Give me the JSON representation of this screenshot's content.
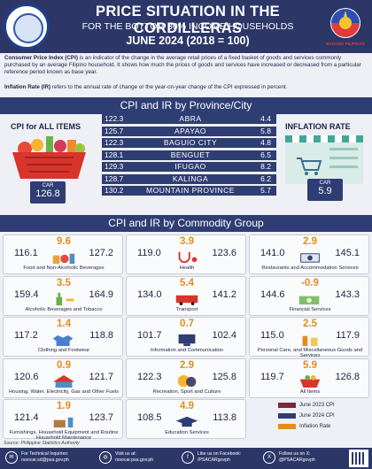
{
  "header": {
    "title": "PRICE SITUATION IN THE CORDILLERAS",
    "subtitle": "FOR THE BOTTOM 30% INCOME HOUSEHOLDS",
    "period": "JUNE 2024 (2018 = 100)",
    "brand": "BAGONG PILIPINAS"
  },
  "intro": {
    "cpi_term": "Consumer Price Index (CPI)",
    "cpi_text": " is an indicator of the change in the average retail prices of a fixed  basket of goods and services commonly purchased by an average Filipino household. It shows how much the prices of goods and services have increased or decreased from a particular reference period known as base year.",
    "ir_term": "Inflation Rate (IR)",
    "ir_text": " refers to the annual rate of change  or the year-on-year change of the CPI expressed in percent."
  },
  "province_section": {
    "title": "CPI and IR by Province/City",
    "cpi_label": "CPI for ALL ITEMS",
    "ir_label": "INFLATION RATE",
    "car_cpi_label": "CAR",
    "car_cpi": "126.8",
    "car_ir_label": "CAR",
    "car_ir": "5.9",
    "rows": [
      {
        "cpi": "122.3",
        "name": "ABRA",
        "ir": "4.4"
      },
      {
        "cpi": "125.7",
        "name": "APAYAO",
        "ir": "5.8"
      },
      {
        "cpi": "122.3",
        "name": "BAGUIO CITY",
        "ir": "4.8"
      },
      {
        "cpi": "128.1",
        "name": "BENGUET",
        "ir": "6.5"
      },
      {
        "cpi": "129.3",
        "name": "IFUGAO",
        "ir": "8.2"
      },
      {
        "cpi": "128.7",
        "name": "KALINGA",
        "ir": "6.2"
      },
      {
        "cpi": "130.2",
        "name": "MOUNTAIN PROVINCE",
        "ir": "5.7"
      }
    ]
  },
  "commodity_section": {
    "title": "CPI and IR by Commodity Group",
    "items": [
      {
        "label": "Food and Non-Alcoholic Beverages",
        "cpi_2023": "116.1",
        "cpi_2024": "127.2",
        "ir": "9.6",
        "icon": "food-icon"
      },
      {
        "label": "Health",
        "cpi_2023": "119.0",
        "cpi_2024": "123.6",
        "ir": "3.9",
        "icon": "stethoscope-icon"
      },
      {
        "label": "Restaurants and Accommodation Services",
        "cpi_2023": "141.0",
        "cpi_2024": "145.1",
        "ir": "2.9",
        "icon": "restaurant-icon"
      },
      {
        "label": "Alcoholic Beverages and Tobacco",
        "cpi_2023": "159.4",
        "cpi_2024": "164.9",
        "ir": "3.5",
        "icon": "bottle-icon"
      },
      {
        "label": "Transport",
        "cpi_2023": "134.0",
        "cpi_2024": "141.2",
        "ir": "5.4",
        "icon": "jeepney-icon"
      },
      {
        "label": "Financial Services",
        "cpi_2023": "144.6",
        "cpi_2024": "143.3",
        "ir": "-0.9",
        "icon": "money-icon"
      },
      {
        "label": "Clothing and Footwear",
        "cpi_2023": "117.2",
        "cpi_2024": "118.8",
        "ir": "1.4",
        "icon": "shirt-icon"
      },
      {
        "label": "Information and Communication",
        "cpi_2023": "101.7",
        "cpi_2024": "102.4",
        "ir": "0.7",
        "icon": "computer-icon"
      },
      {
        "label": "Personal Care, and Miscellaneous Goods and Services",
        "cpi_2023": "115.0",
        "cpi_2024": "117.9",
        "ir": "2.5",
        "icon": "personal-care-icon"
      },
      {
        "label": "Housing, Water, Electricity, Gas and Other Fuels",
        "cpi_2023": "120.6",
        "cpi_2024": "121.7",
        "ir": "0.9",
        "icon": "house-icon"
      },
      {
        "label": "Recreation, Sport and Culture",
        "cpi_2023": "122.3",
        "cpi_2024": "125.8",
        "ir": "2.9",
        "icon": "theater-masks-icon"
      },
      {
        "label": "All Items",
        "cpi_2023": "119.7",
        "cpi_2024": "126.8",
        "ir": "5.9",
        "icon": "basket-icon"
      },
      {
        "label": "Furnishings, Household Equipment and Routine Household Maintenance",
        "cpi_2023": "121.4",
        "cpi_2024": "123.7",
        "ir": "1.9",
        "icon": "furniture-icon"
      },
      {
        "label": "Education Services",
        "cpi_2023": "108.5",
        "cpi_2024": "113.8",
        "ir": "4.9",
        "icon": "graduation-cap-icon"
      }
    ],
    "legend": [
      {
        "label": "June 2023 CPI",
        "color": "#7a2a3a"
      },
      {
        "label": "June 2024 CPI",
        "color": "#2e3d73"
      },
      {
        "label": "Inflation Rate",
        "color": "#e58c1e"
      }
    ]
  },
  "source": "Source: Philippine Statistics Authority",
  "footer": {
    "email_label": "For Technical Inquiries:",
    "email": "rssocar.sd@psa.gov.ph",
    "web_label": "Visit us at:",
    "web": "rssocar.psa.gov.ph",
    "fb_label": "Like us on Facebook:",
    "fb": "/PSACARgovph",
    "x_label": "Follow us on X:",
    "x": "@PSACARgovph"
  }
}
